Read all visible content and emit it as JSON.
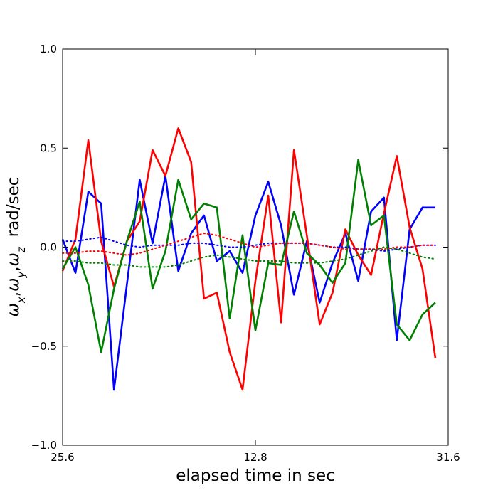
{
  "chart_data": {
    "type": "line",
    "xlabel": "elapsed time in sec",
    "ylabel": [
      {
        "text": "ω"
      },
      {
        "text": "x",
        "sub": true
      },
      {
        "text": ","
      },
      {
        "text": "ω"
      },
      {
        "text": "y",
        "sub": true
      },
      {
        "text": ","
      },
      {
        "text": "ω"
      },
      {
        "text": "z",
        "sub": true
      },
      {
        "text": "rad/sec"
      }
    ],
    "xlim": [
      0,
      30
    ],
    "xticks": [
      {
        "value": 0,
        "label": "25.6"
      },
      {
        "value": 15,
        "label": "12.8"
      },
      {
        "value": 30,
        "label": "31.6"
      }
    ],
    "ylim": [
      -1.0,
      1.0
    ],
    "yticks": [
      {
        "value": -1.0,
        "label": "−1.0"
      },
      {
        "value": -0.5,
        "label": "−0.5"
      },
      {
        "value": 0.0,
        "label": "0.0"
      },
      {
        "value": 0.5,
        "label": "0.5"
      },
      {
        "value": 1.0,
        "label": "1.0"
      }
    ],
    "grid": false,
    "x": [
      0,
      1,
      2,
      3,
      4,
      5,
      6,
      7,
      8,
      9,
      10,
      11,
      12,
      13,
      14,
      15,
      16,
      17,
      18,
      19,
      20,
      21,
      22,
      23,
      24,
      25,
      26,
      27,
      28,
      29
    ],
    "series": [
      {
        "color": "#0000ff",
        "style": "solid",
        "values": [
          0.04,
          -0.13,
          0.28,
          0.22,
          -0.72,
          -0.19,
          0.34,
          0.02,
          0.36,
          -0.12,
          0.07,
          0.16,
          -0.07,
          -0.02,
          -0.13,
          0.16,
          0.33,
          0.11,
          -0.24,
          0.03,
          -0.28,
          -0.08,
          0.07,
          -0.17,
          0.18,
          0.25,
          -0.47,
          0.09,
          0.2,
          0.2
        ]
      },
      {
        "color": "#ff0000",
        "style": "solid",
        "values": [
          -0.12,
          0.04,
          0.54,
          0.03,
          -0.2,
          0.03,
          0.13,
          0.49,
          0.36,
          0.6,
          0.43,
          -0.26,
          -0.23,
          -0.53,
          -0.72,
          -0.17,
          0.26,
          -0.38,
          0.49,
          0.06,
          -0.39,
          -0.23,
          0.09,
          -0.04,
          -0.14,
          0.17,
          0.46,
          0.1,
          -0.11,
          -0.56
        ]
      },
      {
        "color": "#008000",
        "style": "solid",
        "values": [
          -0.11,
          0.0,
          -0.19,
          -0.53,
          -0.21,
          0.03,
          0.23,
          -0.21,
          -0.02,
          0.34,
          0.14,
          0.22,
          0.2,
          -0.36,
          0.06,
          -0.42,
          -0.08,
          -0.09,
          0.18,
          -0.03,
          -0.09,
          -0.18,
          -0.08,
          0.44,
          0.11,
          0.16,
          -0.39,
          -0.47,
          -0.34,
          -0.28
        ]
      },
      {
        "color": "#0000ff",
        "style": "dotted",
        "values": [
          0.03,
          0.03,
          0.04,
          0.05,
          0.03,
          0.01,
          0.0,
          0.01,
          0.01,
          0.01,
          0.02,
          0.02,
          0.01,
          0.0,
          0.0,
          0.01,
          0.02,
          0.02,
          0.02,
          0.02,
          0.01,
          0.0,
          0.0,
          -0.01,
          -0.01,
          -0.02,
          -0.01,
          0.0,
          0.01,
          0.01
        ]
      },
      {
        "color": "#ff0000",
        "style": "dotted",
        "values": [
          -0.03,
          -0.03,
          -0.02,
          -0.02,
          -0.03,
          -0.04,
          -0.03,
          -0.01,
          0.01,
          0.03,
          0.05,
          0.07,
          0.06,
          0.04,
          0.02,
          0.0,
          0.01,
          0.02,
          0.02,
          0.02,
          0.01,
          0.0,
          -0.01,
          -0.01,
          -0.01,
          -0.01,
          0.0,
          0.0,
          0.01,
          0.01
        ]
      },
      {
        "color": "#008000",
        "style": "dotted",
        "values": [
          -0.07,
          -0.07,
          -0.08,
          -0.08,
          -0.09,
          -0.09,
          -0.1,
          -0.1,
          -0.1,
          -0.09,
          -0.07,
          -0.05,
          -0.04,
          -0.05,
          -0.06,
          -0.07,
          -0.07,
          -0.07,
          -0.08,
          -0.08,
          -0.08,
          -0.07,
          -0.06,
          -0.04,
          -0.02,
          0.0,
          -0.01,
          -0.03,
          -0.05,
          -0.06
        ]
      }
    ]
  }
}
